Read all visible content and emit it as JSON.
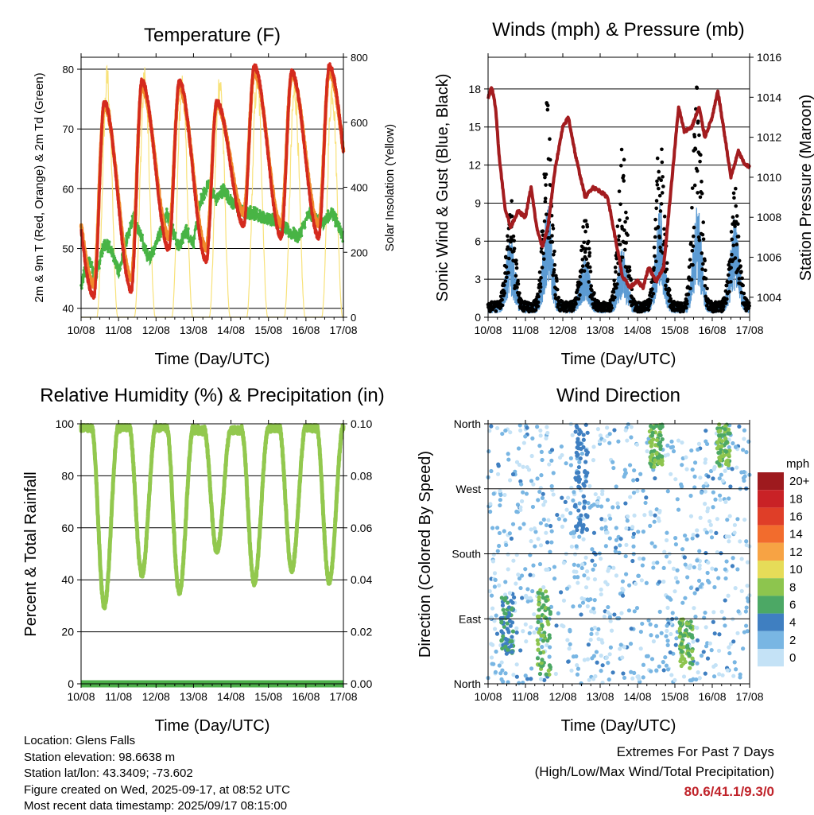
{
  "palette": {
    "temp_2m": "#d42a1e",
    "temp_9m": "#f08a2c",
    "dewpoint": "#48b445",
    "solar": "#f8e27a",
    "wind": "#5c9bd3",
    "gust": "#000000",
    "pressure": "#a31c1f",
    "humidity": "#92c84e",
    "precip": "#4daf4a",
    "extremes": "#c0232a"
  },
  "x_ticks": [
    "10/08",
    "11/08",
    "12/08",
    "13/08",
    "14/08",
    "15/08",
    "16/08",
    "17/08"
  ],
  "chart_data": [
    {
      "id": "temperature",
      "type": "line",
      "title": "Temperature (F)",
      "xlabel": "Time (Day/UTC)",
      "ylabel": "2m & 9m T (Red, Orange) & 2m Td (Green)",
      "y2label": "Solar Insolation (Yellow)",
      "x": [
        "10/08",
        "11/08",
        "12/08",
        "13/08",
        "14/08",
        "15/08",
        "16/08",
        "17/08"
      ],
      "ylim": [
        38.5,
        82
      ],
      "yticks": [
        40,
        50,
        60,
        70,
        80
      ],
      "y2lim": [
        0,
        800
      ],
      "y2ticks": [
        0,
        200,
        400,
        600,
        800
      ],
      "grid": "horizontal at 40, 50, 60, 70, 80",
      "series": [
        {
          "name": "2m T",
          "axis": "left",
          "daily_max": [
            74.5,
            78,
            78,
            74.5,
            80.5,
            79.5,
            80.5
          ],
          "daily_min": [
            42,
            43,
            50,
            48,
            54,
            52,
            52
          ],
          "end": 54
        },
        {
          "name": "9m T",
          "axis": "left",
          "daily_max": [
            74,
            77,
            77,
            74,
            79.5,
            79,
            79.5
          ],
          "daily_min": [
            44,
            45,
            52,
            50,
            56,
            54,
            54
          ],
          "end": 55
        },
        {
          "name": "2m Td",
          "axis": "left",
          "points": [
            [
              0,
              44
            ],
            [
              0.2,
              48
            ],
            [
              0.4,
              45
            ],
            [
              0.6,
              51
            ],
            [
              0.8,
              50
            ],
            [
              1.0,
              46
            ],
            [
              1.2,
              51
            ],
            [
              1.4,
              55
            ],
            [
              1.6,
              52
            ],
            [
              1.8,
              48
            ],
            [
              2.0,
              51
            ],
            [
              2.3,
              56
            ],
            [
              2.6,
              50
            ],
            [
              2.8,
              53
            ],
            [
              3.0,
              51
            ],
            [
              3.2,
              58
            ],
            [
              3.4,
              61
            ],
            [
              3.6,
              58
            ],
            [
              3.8,
              60
            ],
            [
              4.0,
              58
            ],
            [
              4.3,
              56
            ],
            [
              4.6,
              56
            ],
            [
              4.9,
              55
            ],
            [
              5.2,
              55
            ],
            [
              5.5,
              53
            ],
            [
              5.8,
              52
            ],
            [
              6.1,
              56
            ],
            [
              6.4,
              54
            ],
            [
              6.7,
              56
            ],
            [
              7.0,
              52
            ]
          ]
        },
        {
          "name": "Solar Insolation",
          "axis": "right",
          "daily_peak": [
            790,
            780,
            780,
            780,
            790,
            750,
            760
          ]
        }
      ]
    },
    {
      "id": "winds",
      "type": "line",
      "title": "Winds (mph) & Pressure (mb)",
      "xlabel": "Time (Day/UTC)",
      "ylabel": "Sonic Wind & Gust (Blue, Black)",
      "y2label": "Station Pressure (Maroon)",
      "x": [
        "10/08",
        "11/08",
        "12/08",
        "13/08",
        "14/08",
        "15/08",
        "16/08",
        "17/08"
      ],
      "ylim": [
        0,
        20.5
      ],
      "yticks": [
        0,
        3,
        6,
        9,
        12,
        15,
        18
      ],
      "y2lim": [
        1003,
        1016
      ],
      "y2ticks": [
        1004,
        1006,
        1008,
        1010,
        1012,
        1014,
        1016
      ],
      "grid": "horizontal at 3, 6, 9, 12, 15, 18",
      "series": [
        {
          "name": "Sonic Wind",
          "axis": "left",
          "daily_peak": [
            6.5,
            9.0,
            5.0,
            5.5,
            9.0,
            9.0,
            8.0
          ]
        },
        {
          "name": "Gust",
          "axis": "left",
          "daily_peak": [
            9.5,
            17.8,
            8.0,
            13.5,
            14.5,
            18.3,
            10.5
          ]
        },
        {
          "name": "Station Pressure",
          "axis": "right",
          "points": [
            [
              0,
              1014.0
            ],
            [
              0.1,
              1014.5
            ],
            [
              0.2,
              1013.5
            ],
            [
              0.3,
              1011
            ],
            [
              0.45,
              1008.5
            ],
            [
              0.6,
              1007.5
            ],
            [
              0.8,
              1008.3
            ],
            [
              1.0,
              1008.0
            ],
            [
              1.15,
              1009.5
            ],
            [
              1.3,
              1007.5
            ],
            [
              1.45,
              1006.5
            ],
            [
              1.6,
              1007.5
            ],
            [
              1.8,
              1010.5
            ],
            [
              2.0,
              1012.5
            ],
            [
              2.15,
              1013.0
            ],
            [
              2.35,
              1011.0
            ],
            [
              2.6,
              1009.0
            ],
            [
              2.8,
              1009.5
            ],
            [
              3.0,
              1009.3
            ],
            [
              3.2,
              1009.0
            ],
            [
              3.4,
              1007.0
            ],
            [
              3.6,
              1005.0
            ],
            [
              3.8,
              1004.5
            ],
            [
              4.0,
              1004.8
            ],
            [
              4.15,
              1004.5
            ],
            [
              4.3,
              1005.5
            ],
            [
              4.5,
              1004.8
            ],
            [
              4.7,
              1005.5
            ],
            [
              4.9,
              1009.5
            ],
            [
              5.1,
              1013.5
            ],
            [
              5.25,
              1012.3
            ],
            [
              5.45,
              1012.5
            ],
            [
              5.65,
              1013.5
            ],
            [
              5.8,
              1012.0
            ],
            [
              6.0,
              1013.0
            ],
            [
              6.15,
              1014.3
            ],
            [
              6.3,
              1012.5
            ],
            [
              6.5,
              1010.0
            ],
            [
              6.7,
              1011.3
            ],
            [
              6.85,
              1010.7
            ],
            [
              7.0,
              1010.5
            ]
          ]
        }
      ]
    },
    {
      "id": "humidity",
      "type": "line",
      "title": "Relative Humidity (%) & Precipitation (in)",
      "xlabel": "Time (Day/UTC)",
      "ylabel": "Percent & Total Rainfall",
      "x": [
        "10/08",
        "11/08",
        "12/08",
        "13/08",
        "14/08",
        "15/08",
        "16/08",
        "17/08"
      ],
      "ylim": [
        0,
        100
      ],
      "yticks": [
        0,
        20,
        40,
        60,
        80,
        100
      ],
      "y2lim": [
        0,
        0.1
      ],
      "y2ticks": [
        "0.00",
        "0.02",
        "0.04",
        "0.06",
        "0.08",
        "0.10"
      ],
      "grid": "horizontal at 20, 40, 60, 80",
      "series": [
        {
          "name": "Relative Humidity",
          "axis": "left",
          "daily_min": [
            30,
            42,
            35,
            51,
            39,
            44,
            39
          ],
          "daily_max": [
            99,
            99,
            99,
            98,
            98,
            99,
            99
          ]
        },
        {
          "name": "Precipitation",
          "axis": "right",
          "values": [
            0,
            0,
            0,
            0,
            0,
            0,
            0,
            0
          ]
        }
      ]
    },
    {
      "id": "direction",
      "type": "scatter",
      "title": "Wind Direction",
      "xlabel": "Time (Day/UTC)",
      "ylabel": "Direction (Colored By Speed)",
      "x": [
        "10/08",
        "11/08",
        "12/08",
        "13/08",
        "14/08",
        "15/08",
        "16/08",
        "17/08"
      ],
      "yticks": [
        "North",
        "East",
        "South",
        "West",
        "North"
      ],
      "ylim": [
        0,
        360
      ],
      "legend": {
        "title": "mph",
        "placement": "right",
        "labels": [
          "20+",
          "18",
          "16",
          "14",
          "12",
          "10",
          "8",
          "6",
          "4",
          "2",
          "0"
        ],
        "colors": [
          "#9e1a1e",
          "#c92226",
          "#df3e28",
          "#f26c2d",
          "#f7a344",
          "#e6dc58",
          "#8dc54e",
          "#4ca865",
          "#3f7fc1",
          "#79b6e3",
          "#c4e2f6"
        ]
      },
      "clusters": [
        {
          "day": 0.5,
          "direction_band": "40-120",
          "speed": "4-6"
        },
        {
          "day": 1.5,
          "direction_band": "10-130",
          "speed": "6-8"
        },
        {
          "day": 2.5,
          "direction_band": "200-360",
          "speed": "4"
        },
        {
          "day": 4.5,
          "direction_band": "300-360",
          "speed": "6-8"
        },
        {
          "day": 5.3,
          "direction_band": "20-90",
          "speed": "6-8"
        },
        {
          "day": 6.3,
          "direction_band": "300-360",
          "speed": "6-8"
        }
      ]
    }
  ],
  "info": {
    "location": "Location: Glens Falls",
    "elevation": "Station elevation: 98.6638 m",
    "latlon": "Station lat/lon: 43.3409; -73.602",
    "created": "Figure created on Wed, 2025-09-17, at 08:52 UTC",
    "recent": "Most recent data timestamp: 2025/09/17 08:15:00"
  },
  "extremes": {
    "title": "Extremes For Past 7 Days",
    "subtitle": "(High/Low/Max Wind/Total Precipitation)",
    "values": "80.6/41.1/9.3/0"
  }
}
